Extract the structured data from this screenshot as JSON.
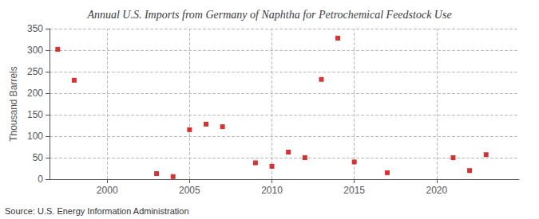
{
  "chart_data": {
    "type": "scatter",
    "title": "Annual U.S. Imports from Germany of Naphtha for Petrochemical Feedstock Use",
    "ylabel": "Thousand Barrels",
    "annotation": "Source: U.S. Energy Information Administration",
    "x": [
      1997,
      1998,
      2003,
      2004,
      2005,
      2006,
      2007,
      2009,
      2010,
      2011,
      2012,
      2013,
      2014,
      2015,
      2017,
      2021,
      2022,
      2023
    ],
    "values": [
      302,
      230,
      13,
      6,
      115,
      128,
      122,
      38,
      30,
      63,
      50,
      232,
      328,
      40,
      15,
      50,
      20,
      57
    ],
    "color": "#cc0000",
    "marker": "square",
    "xlim": [
      1996.5,
      2025
    ],
    "xticks": [
      2000,
      2005,
      2010,
      2015,
      2020
    ],
    "ylim": [
      0,
      350
    ],
    "yticks": [
      0,
      50,
      100,
      150,
      200,
      250,
      300,
      350
    ],
    "grid": true
  }
}
